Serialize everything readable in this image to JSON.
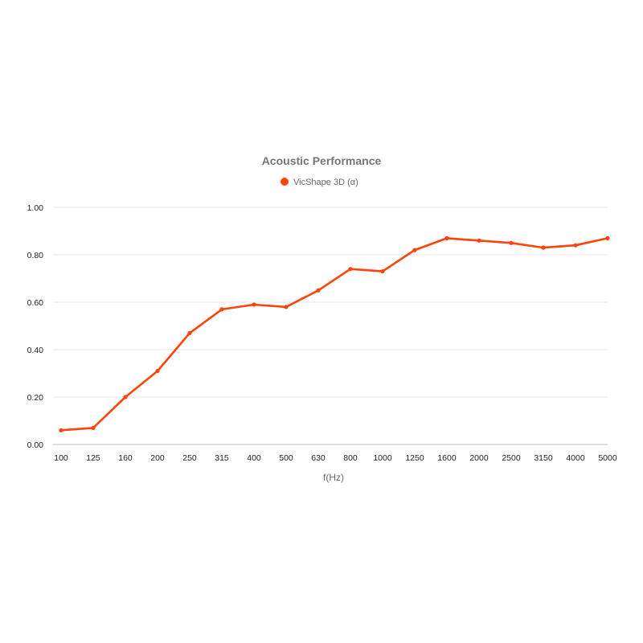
{
  "chart_data": {
    "type": "line",
    "title": "Acoustic Performance",
    "xlabel": "f(Hz)",
    "ylabel": "",
    "categories": [
      "100",
      "125",
      "160",
      "200",
      "250",
      "315",
      "400",
      "500",
      "630",
      "800",
      "1000",
      "1250",
      "1600",
      "2000",
      "2500",
      "3150",
      "4000",
      "5000"
    ],
    "series": [
      {
        "name": "VicShape 3D (α)",
        "color": "#ff4409",
        "values": [
          0.06,
          0.07,
          0.2,
          0.31,
          0.47,
          0.57,
          0.59,
          0.58,
          0.65,
          0.74,
          0.73,
          0.82,
          0.87,
          0.86,
          0.85,
          0.83,
          0.84,
          0.87
        ]
      }
    ],
    "ylim": [
      0,
      1
    ],
    "yticks": [
      "0.00",
      "0.20",
      "0.40",
      "0.60",
      "0.80",
      "1.00"
    ],
    "grid": true,
    "legend_position": "top"
  }
}
